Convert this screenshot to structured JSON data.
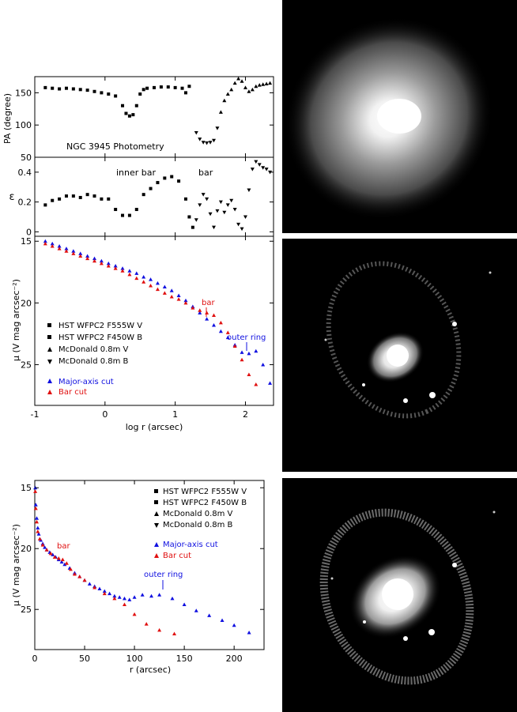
{
  "colors": {
    "black": "#000000",
    "blue": "#1010e0",
    "red": "#e01010"
  },
  "chart_data": [
    {
      "id": "pa",
      "type": "scatter",
      "ylabel": "PA (degree)",
      "annotation": "NGC 3945 Photometry",
      "xlim": [
        -1,
        2.4
      ],
      "ylim": [
        50,
        175
      ],
      "yticks": [
        "150",
        "100",
        "50"
      ],
      "ytick_values": [
        150,
        100,
        50
      ],
      "series": [
        {
          "name": "HST/McDonald",
          "marker": "square",
          "color": "#000000",
          "x": [
            -0.85,
            -0.75,
            -0.65,
            -0.55,
            -0.45,
            -0.35,
            -0.25,
            -0.15,
            -0.05,
            0.05,
            0.15,
            0.25,
            0.3,
            0.35,
            0.4,
            0.45,
            0.5,
            0.55,
            0.6,
            0.7,
            0.8,
            0.9,
            1.0,
            1.1,
            1.15,
            1.2
          ],
          "y": [
            158,
            157,
            156,
            157,
            156,
            155,
            154,
            152,
            150,
            148,
            145,
            130,
            118,
            114,
            116,
            130,
            148,
            155,
            157,
            158,
            159,
            159,
            158,
            157,
            150,
            160
          ]
        },
        {
          "name": "McDonald B",
          "marker": "triangle-down",
          "color": "#000000",
          "x": [
            1.3,
            1.35,
            1.4,
            1.45,
            1.5,
            1.55,
            1.6
          ],
          "y": [
            88,
            78,
            73,
            72,
            73,
            76,
            95
          ]
        },
        {
          "name": "McDonald V",
          "marker": "triangle-up",
          "color": "#000000",
          "x": [
            1.65,
            1.7,
            1.75,
            1.8,
            1.85,
            1.9,
            1.95,
            2.0,
            2.05,
            2.1,
            2.15,
            2.2,
            2.25,
            2.3,
            2.35
          ],
          "y": [
            120,
            138,
            148,
            155,
            165,
            172,
            168,
            158,
            152,
            155,
            160,
            162,
            163,
            164,
            165
          ]
        }
      ]
    },
    {
      "id": "eps",
      "type": "scatter",
      "ylabel": "ε",
      "xlim": [
        -1,
        2.4
      ],
      "ylim": [
        -0.03,
        0.5
      ],
      "yticks": [
        "0.4",
        "0.2",
        "0"
      ],
      "ytick_values": [
        0.4,
        0.2,
        0
      ],
      "annotations": [
        "inner bar",
        "bar"
      ],
      "series": [
        {
          "name": "HST/McDonald",
          "marker": "square",
          "color": "#000000",
          "x": [
            -0.85,
            -0.75,
            -0.65,
            -0.55,
            -0.45,
            -0.35,
            -0.25,
            -0.15,
            -0.05,
            0.05,
            0.15,
            0.25,
            0.35,
            0.45,
            0.55,
            0.65,
            0.75,
            0.85,
            0.95,
            1.05,
            1.15,
            1.2,
            1.25
          ],
          "y": [
            0.18,
            0.21,
            0.22,
            0.24,
            0.24,
            0.23,
            0.25,
            0.24,
            0.22,
            0.22,
            0.15,
            0.11,
            0.11,
            0.15,
            0.25,
            0.29,
            0.33,
            0.36,
            0.37,
            0.34,
            0.22,
            0.1,
            0.03
          ]
        },
        {
          "name": "McDonald",
          "marker": "triangle-down",
          "color": "#000000",
          "x": [
            1.3,
            1.35,
            1.4,
            1.45,
            1.5,
            1.55,
            1.6,
            1.65,
            1.7,
            1.75,
            1.8,
            1.85,
            1.9,
            1.95,
            2.0,
            2.05,
            2.1,
            2.15,
            2.2,
            2.25,
            2.3,
            2.35
          ],
          "y": [
            0.08,
            0.18,
            0.25,
            0.22,
            0.12,
            0.03,
            0.14,
            0.2,
            0.13,
            0.18,
            0.21,
            0.15,
            0.05,
            0.02,
            0.1,
            0.28,
            0.42,
            0.47,
            0.45,
            0.43,
            0.42,
            0.4
          ]
        }
      ]
    },
    {
      "id": "mu_log",
      "type": "scatter",
      "ylabel": "μ (V mag arcsec⁻²)",
      "xlabel": "log r (arcsec)",
      "xlim": [
        -1,
        2.4
      ],
      "ylim": [
        14.6,
        28.3
      ],
      "invert_y": true,
      "xticks": [
        "-1",
        "0",
        "1",
        "2"
      ],
      "xtick_values": [
        -1,
        0,
        1,
        2
      ],
      "yticks": [
        "15",
        "20",
        "25"
      ],
      "ytick_values": [
        15,
        20,
        25
      ],
      "legend": [
        "HST WFPC2 F555W V",
        "HST WFPC2 F450W B",
        "McDonald 0.8m V",
        "McDonald 0.8m B"
      ],
      "legend2": [
        "Major-axis cut",
        "Bar cut"
      ],
      "annotations": [
        "bar",
        "outer ring"
      ],
      "series": [
        {
          "name": "Major-axis cut",
          "color": "#1010e0",
          "x": [
            -0.85,
            -0.75,
            -0.65,
            -0.55,
            -0.45,
            -0.35,
            -0.25,
            -0.15,
            -0.05,
            0.05,
            0.15,
            0.25,
            0.35,
            0.45,
            0.55,
            0.65,
            0.75,
            0.85,
            0.95,
            1.05,
            1.15,
            1.25,
            1.35,
            1.45,
            1.55,
            1.65,
            1.75,
            1.85,
            1.95,
            2.05,
            2.15,
            2.25,
            2.35
          ],
          "y": [
            15.0,
            15.2,
            15.4,
            15.6,
            15.8,
            16.0,
            16.2,
            16.4,
            16.6,
            16.8,
            17.0,
            17.2,
            17.4,
            17.6,
            17.9,
            18.1,
            18.4,
            18.7,
            19.0,
            19.4,
            19.8,
            20.3,
            20.8,
            21.3,
            21.8,
            22.3,
            22.8,
            23.4,
            24.0,
            24.1,
            23.9,
            25.0,
            26.5
          ]
        },
        {
          "name": "Bar cut",
          "color": "#e01010",
          "x": [
            -0.85,
            -0.75,
            -0.65,
            -0.55,
            -0.45,
            -0.35,
            -0.25,
            -0.15,
            -0.05,
            0.05,
            0.15,
            0.25,
            0.35,
            0.45,
            0.55,
            0.65,
            0.75,
            0.85,
            0.95,
            1.05,
            1.15,
            1.25,
            1.35,
            1.45,
            1.55,
            1.65,
            1.75,
            1.85,
            1.95,
            2.05,
            2.15
          ],
          "y": [
            15.2,
            15.4,
            15.6,
            15.8,
            16.0,
            16.2,
            16.4,
            16.6,
            16.8,
            17.0,
            17.2,
            17.4,
            17.7,
            18.0,
            18.3,
            18.6,
            18.9,
            19.2,
            19.5,
            19.7,
            20.0,
            20.4,
            20.6,
            20.8,
            21.0,
            21.6,
            22.4,
            23.5,
            24.6,
            25.8,
            26.6
          ]
        }
      ]
    },
    {
      "id": "mu_lin",
      "type": "scatter",
      "ylabel": "μ (V mag arcsec⁻²)",
      "xlabel": "r (arcsec)",
      "xlim": [
        0,
        230
      ],
      "ylim": [
        14.4,
        28.3
      ],
      "invert_y": true,
      "xticks": [
        "0",
        "50",
        "100",
        "150",
        "200"
      ],
      "xtick_values": [
        0,
        50,
        100,
        150,
        200
      ],
      "yticks": [
        "15",
        "20",
        "25"
      ],
      "ytick_values": [
        15,
        20,
        25
      ],
      "legend": [
        "HST WFPC2 F555W V",
        "HST WFPC2 F450W B",
        "McDonald 0.8m V",
        "McDonald 0.8m B"
      ],
      "legend2": [
        "Major-axis cut",
        "Bar cut"
      ],
      "annotations": [
        "bar",
        "outer ring"
      ],
      "series": [
        {
          "name": "Major-axis cut",
          "color": "#1010e0",
          "x": [
            0.5,
            1,
            2,
            3,
            4,
            6,
            8,
            10,
            12,
            15,
            18,
            21,
            24,
            27,
            30,
            35,
            40,
            45,
            50,
            55,
            60,
            65,
            70,
            75,
            80,
            85,
            90,
            95,
            100,
            108,
            117,
            125,
            138,
            150,
            162,
            175,
            188,
            200,
            215
          ],
          "y": [
            15.0,
            16.4,
            17.5,
            18.3,
            18.8,
            19.3,
            19.6,
            19.9,
            20.1,
            20.3,
            20.5,
            20.7,
            20.9,
            21.1,
            21.3,
            21.6,
            22.0,
            22.3,
            22.6,
            22.9,
            23.1,
            23.3,
            23.5,
            23.7,
            23.9,
            24.0,
            24.1,
            24.2,
            24.0,
            23.8,
            23.9,
            23.8,
            24.1,
            24.6,
            25.1,
            25.5,
            25.9,
            26.3,
            26.9
          ]
        },
        {
          "name": "Bar cut",
          "color": "#e01010",
          "x": [
            0.5,
            1,
            2,
            3,
            5,
            8,
            12,
            16,
            20,
            24,
            28,
            32,
            36,
            40,
            45,
            50,
            60,
            70,
            80,
            90,
            100,
            112,
            125,
            140
          ],
          "y": [
            15.3,
            16.7,
            17.8,
            18.6,
            19.2,
            19.7,
            20.1,
            20.4,
            20.7,
            20.8,
            20.9,
            21.2,
            21.7,
            22.1,
            22.3,
            22.6,
            23.2,
            23.7,
            24.1,
            24.6,
            25.4,
            26.2,
            26.7,
            27.0
          ]
        }
      ]
    }
  ]
}
